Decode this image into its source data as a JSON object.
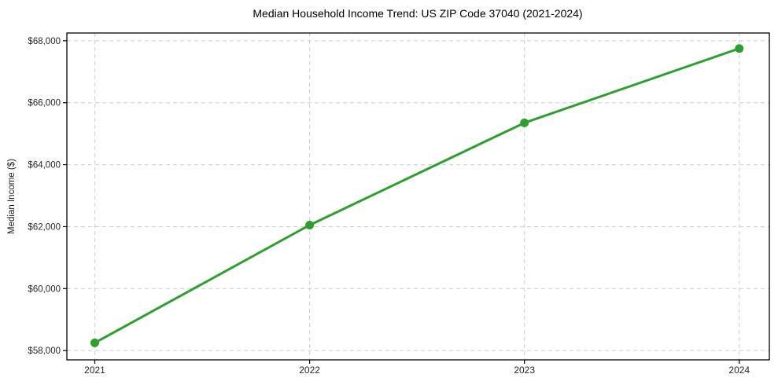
{
  "chart_data": {
    "type": "line",
    "title": "Median Household Income Trend: US ZIP Code 37040 (2021-2024)",
    "xlabel": "",
    "ylabel": "Median Income ($)",
    "x": [
      2021,
      2022,
      2023,
      2024
    ],
    "x_tick_labels": [
      "2021",
      "2022",
      "2023",
      "2024"
    ],
    "y_ticks": [
      {
        "value": 58000,
        "label": "$58,000"
      },
      {
        "value": 60000,
        "label": "$60,000"
      },
      {
        "value": 62000,
        "label": "$62,000"
      },
      {
        "value": 64000,
        "label": "$64,000"
      },
      {
        "value": 66000,
        "label": "$66,000"
      },
      {
        "value": 68000,
        "label": "$68,000"
      }
    ],
    "series": [
      {
        "name": "Median Household Income",
        "values": [
          58250,
          62050,
          65350,
          67750
        ],
        "color": "#2ca02c",
        "marker": "circle"
      }
    ],
    "xlim": [
      2020.87,
      2024.14
    ],
    "ylim": [
      57700,
      68250
    ],
    "grid": {
      "visible": true,
      "style": "dashed",
      "color": "#cccccc"
    },
    "legend_position": "none",
    "colors": {
      "line": "#2ca02c",
      "background": "#ffffff",
      "spine": "#000000",
      "tick_text": "#262626",
      "grid": "#cccccc"
    }
  }
}
